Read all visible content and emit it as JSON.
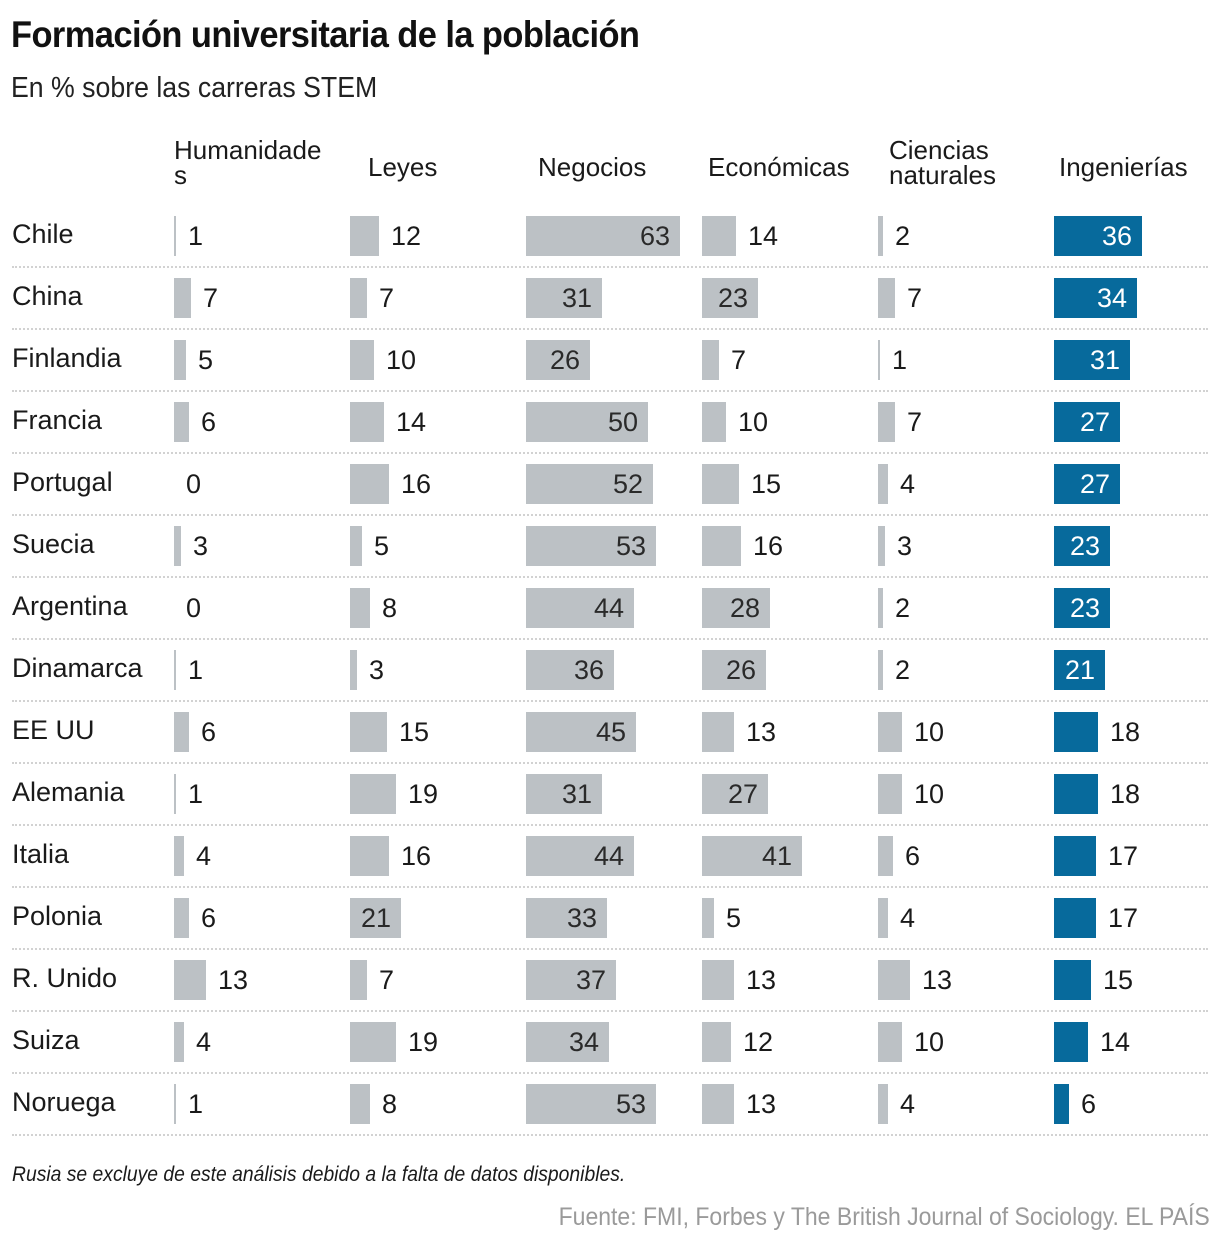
{
  "chart_data": {
    "type": "table",
    "title": "Formación universitaria de la población",
    "subtitle": "En % sobre las carreras STEM",
    "columns": [
      {
        "key": "humanidades",
        "label_lines": [
          "Humanidade",
          "s"
        ],
        "color": "#bcc1c5"
      },
      {
        "key": "leyes",
        "label_lines": [
          "Leyes"
        ],
        "color": "#bcc1c5"
      },
      {
        "key": "negocios",
        "label_lines": [
          "Negocios"
        ],
        "color": "#bcc1c5"
      },
      {
        "key": "economicas",
        "label_lines": [
          "Económicas"
        ],
        "color": "#bcc1c5"
      },
      {
        "key": "ciencias_naturales",
        "label_lines": [
          "Ciencias",
          "naturales"
        ],
        "color": "#bcc1c5"
      },
      {
        "key": "ingenierias",
        "label_lines": [
          "Ingenierías"
        ],
        "color": "#076a9c"
      }
    ],
    "rows": [
      {
        "country": "Chile",
        "values": [
          1,
          12,
          63,
          14,
          2,
          36
        ]
      },
      {
        "country": "China",
        "values": [
          7,
          7,
          31,
          23,
          7,
          34
        ]
      },
      {
        "country": "Finlandia",
        "values": [
          5,
          10,
          26,
          7,
          1,
          31
        ]
      },
      {
        "country": "Francia",
        "values": [
          6,
          14,
          50,
          10,
          7,
          27
        ]
      },
      {
        "country": "Portugal",
        "values": [
          0,
          16,
          52,
          15,
          4,
          27
        ]
      },
      {
        "country": "Suecia",
        "values": [
          3,
          5,
          53,
          16,
          3,
          23
        ]
      },
      {
        "country": "Argentina",
        "values": [
          0,
          8,
          44,
          28,
          2,
          23
        ]
      },
      {
        "country": "Dinamarca",
        "values": [
          1,
          3,
          36,
          26,
          2,
          21
        ]
      },
      {
        "country": "EE UU",
        "values": [
          6,
          15,
          45,
          13,
          10,
          18
        ]
      },
      {
        "country": "Alemania",
        "values": [
          1,
          19,
          31,
          27,
          10,
          18
        ]
      },
      {
        "country": "Italia",
        "values": [
          4,
          16,
          44,
          41,
          6,
          17
        ]
      },
      {
        "country": "Polonia",
        "values": [
          6,
          21,
          33,
          5,
          4,
          17
        ]
      },
      {
        "country": "R. Unido",
        "values": [
          13,
          7,
          37,
          13,
          13,
          15
        ]
      },
      {
        "country": "Suiza",
        "values": [
          4,
          19,
          34,
          12,
          10,
          14
        ]
      },
      {
        "country": "Noruega",
        "values": [
          1,
          8,
          53,
          13,
          4,
          6
        ]
      }
    ],
    "value_range": [
      0,
      63
    ],
    "note": "Rusia se excluye de este análisis debido a la falta de datos disponibles.",
    "source": "Fuente: FMI, Forbes y The British Journal of Sociology. EL PAÍS"
  }
}
